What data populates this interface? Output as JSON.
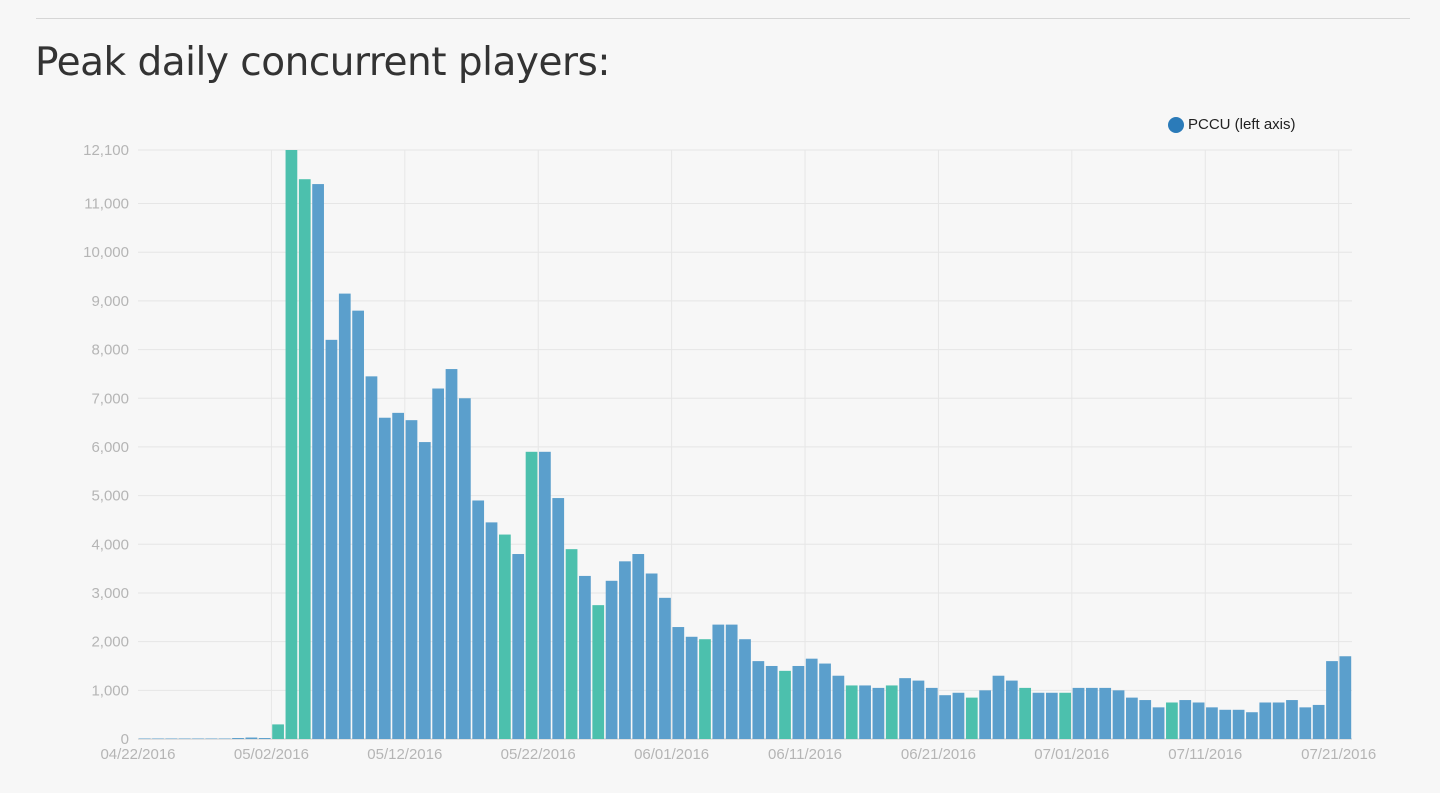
{
  "page": {
    "title": "Peak daily concurrent players:"
  },
  "chart_data": {
    "type": "bar",
    "legend": {
      "label": "PCCU (left axis)",
      "color": "#2b7bb9",
      "position": "top-right"
    },
    "ylim": [
      0,
      12100
    ],
    "yticks": [
      0,
      1000,
      2000,
      3000,
      4000,
      5000,
      6000,
      7000,
      8000,
      9000,
      10000,
      11000,
      12100
    ],
    "ytick_labels": [
      "0",
      "1,000",
      "2,000",
      "3,000",
      "4,000",
      "5,000",
      "6,000",
      "7,000",
      "8,000",
      "9,000",
      "10,000",
      "11,000",
      "12,100"
    ],
    "x_start": "04/22/2016",
    "xtick_labels": [
      "04/22/2016",
      "05/02/2016",
      "05/12/2016",
      "05/22/2016",
      "06/01/2016",
      "06/11/2016",
      "06/21/2016",
      "07/01/2016",
      "07/11/2016",
      "07/21/2016"
    ],
    "grid": true,
    "colors": {
      "weekday": "#5b9fcc",
      "weekend": "#4cc0ad",
      "gridline": "#e6e6e6",
      "axis": "#c8c8c8"
    },
    "values": [
      10,
      10,
      10,
      10,
      10,
      10,
      10,
      20,
      30,
      20,
      300,
      12100,
      11500,
      11400,
      8200,
      9150,
      8800,
      7450,
      6600,
      6700,
      6550,
      6100,
      7200,
      7600,
      7000,
      4900,
      4450,
      4200,
      3800,
      5900,
      5900,
      4950,
      3900,
      3350,
      2750,
      3250,
      3650,
      3800,
      3400,
      2900,
      2300,
      2100,
      2050,
      2350,
      2350,
      2050,
      1600,
      1500,
      1400,
      1500,
      1650,
      1550,
      1300,
      1100,
      1100,
      1050,
      1100,
      1250,
      1200,
      1050,
      900,
      950,
      850,
      1000,
      1300,
      1200,
      1050,
      950,
      950,
      950,
      1050,
      1050,
      1050,
      1000,
      850,
      800,
      650,
      750,
      800,
      750,
      650,
      600,
      600,
      550,
      750,
      750,
      800,
      650,
      700,
      1600,
      1700
    ],
    "bar_colors": [
      "weekday",
      "weekday",
      "weekday",
      "weekday",
      "weekday",
      "weekday",
      "weekday",
      "weekday",
      "weekday",
      "weekday",
      "weekend",
      "weekend",
      "weekend",
      "weekday",
      "weekday",
      "weekday",
      "weekday",
      "weekday",
      "weekday",
      "weekday",
      "weekday",
      "weekday",
      "weekday",
      "weekday",
      "weekday",
      "weekday",
      "weekday",
      "weekend",
      "weekday",
      "weekend",
      "weekday",
      "weekday",
      "weekend",
      "weekday",
      "weekend",
      "weekday",
      "weekday",
      "weekday",
      "weekday",
      "weekday",
      "weekday",
      "weekday",
      "weekend",
      "weekday",
      "weekday",
      "weekday",
      "weekday",
      "weekday",
      "weekend",
      "weekday",
      "weekday",
      "weekday",
      "weekday",
      "weekend",
      "weekday",
      "weekday",
      "weekend",
      "weekday",
      "weekday",
      "weekday",
      "weekday",
      "weekday",
      "weekend",
      "weekday",
      "weekday",
      "weekday",
      "weekend",
      "weekday",
      "weekday",
      "weekend",
      "weekday",
      "weekday",
      "weekday",
      "weekday",
      "weekday",
      "weekday",
      "weekday",
      "weekend",
      "weekday",
      "weekday",
      "weekday",
      "weekday",
      "weekday",
      "weekday",
      "weekday",
      "weekday",
      "weekday",
      "weekday",
      "weekday",
      "weekday",
      "weekday"
    ]
  }
}
